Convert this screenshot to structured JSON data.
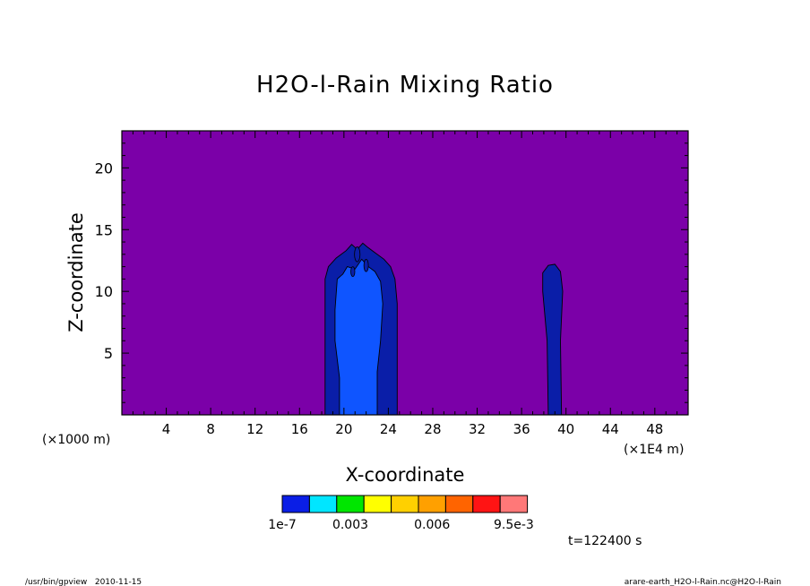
{
  "chart_data": {
    "type": "heatmap",
    "title": "H2O-l-Rain Mixing Ratio",
    "xlabel": "X-coordinate",
    "ylabel": "Z-coordinate",
    "x_unit_left": "(×1000 m)",
    "x_unit_right": "(×1E4 m)",
    "xlim": [
      0,
      51
    ],
    "ylim": [
      0,
      23
    ],
    "x_ticks": [
      4,
      8,
      12,
      16,
      20,
      24,
      28,
      32,
      36,
      40,
      44,
      48
    ],
    "y_ticks": [
      5,
      10,
      15,
      20
    ],
    "background_color": "#7b00a8",
    "colorbar": {
      "colors": [
        "#0a1ee6",
        "#00e6ff",
        "#00e600",
        "#ffff00",
        "#ffd000",
        "#ffa000",
        "#ff6400",
        "#ff1414",
        "#ff7878"
      ],
      "labels": [
        "1e-7",
        "0.003",
        "0.006",
        "9.5e-3"
      ],
      "label_positions": [
        0,
        2.5,
        5.5,
        8.5
      ]
    },
    "regions": [
      {
        "name": "left-cloud-outer",
        "color": "#0a1ea8",
        "points": [
          [
            18.3,
            0
          ],
          [
            18.3,
            11.0
          ],
          [
            18.6,
            12.0
          ],
          [
            19.3,
            12.7
          ],
          [
            20.2,
            13.3
          ],
          [
            20.7,
            13.8
          ],
          [
            21.2,
            13.4
          ],
          [
            21.7,
            13.9
          ],
          [
            22.1,
            13.6
          ],
          [
            22.7,
            13.2
          ],
          [
            23.6,
            12.6
          ],
          [
            24.2,
            12.0
          ],
          [
            24.6,
            11.0
          ],
          [
            24.8,
            9.0
          ],
          [
            24.8,
            0
          ]
        ]
      },
      {
        "name": "left-cloud-inner",
        "color": "#0f55ff",
        "points": [
          [
            19.6,
            0
          ],
          [
            19.6,
            3.0
          ],
          [
            19.2,
            6.0
          ],
          [
            19.2,
            8.5
          ],
          [
            19.4,
            11.0
          ],
          [
            19.9,
            11.4
          ],
          [
            20.3,
            12.0
          ],
          [
            21.0,
            11.8
          ],
          [
            21.6,
            12.6
          ],
          [
            22.2,
            12.0
          ],
          [
            22.8,
            11.6
          ],
          [
            23.3,
            10.8
          ],
          [
            23.5,
            9.0
          ],
          [
            23.3,
            6.0
          ],
          [
            23.0,
            3.5
          ],
          [
            23.0,
            0
          ]
        ]
      },
      {
        "name": "right-column",
        "color": "#0a1ea8",
        "points": [
          [
            38.4,
            0
          ],
          [
            38.3,
            6.0
          ],
          [
            37.9,
            10.0
          ],
          [
            37.9,
            11.5
          ],
          [
            38.4,
            12.1
          ],
          [
            39.0,
            12.2
          ],
          [
            39.5,
            11.6
          ],
          [
            39.7,
            10.0
          ],
          [
            39.5,
            6.0
          ],
          [
            39.6,
            0
          ]
        ]
      }
    ],
    "time_label": "t=122400 s",
    "footer_left": "/usr/bin/gpview   2010-11-15",
    "footer_right": "arare-earth_H2O-l-Rain.nc@H2O-l-Rain"
  }
}
